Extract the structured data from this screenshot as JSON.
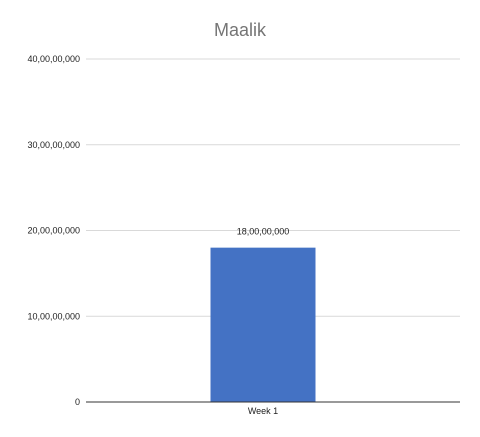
{
  "chart_data": {
    "type": "bar",
    "title": "Maalik",
    "xlabel": "",
    "ylabel": "",
    "categories": [
      "Week 1"
    ],
    "values": [
      180000000
    ],
    "value_labels": [
      "18,00,00,000"
    ],
    "ylim": [
      0,
      400000000
    ],
    "yticks": [
      0,
      100000000,
      200000000,
      300000000,
      400000000
    ],
    "ytick_labels": [
      "0",
      "10,00,00,000",
      "20,00,00,000",
      "30,00,00,000",
      "40,00,00,000"
    ],
    "grid": true,
    "legend": "none",
    "bar_color": "#4472c4"
  }
}
